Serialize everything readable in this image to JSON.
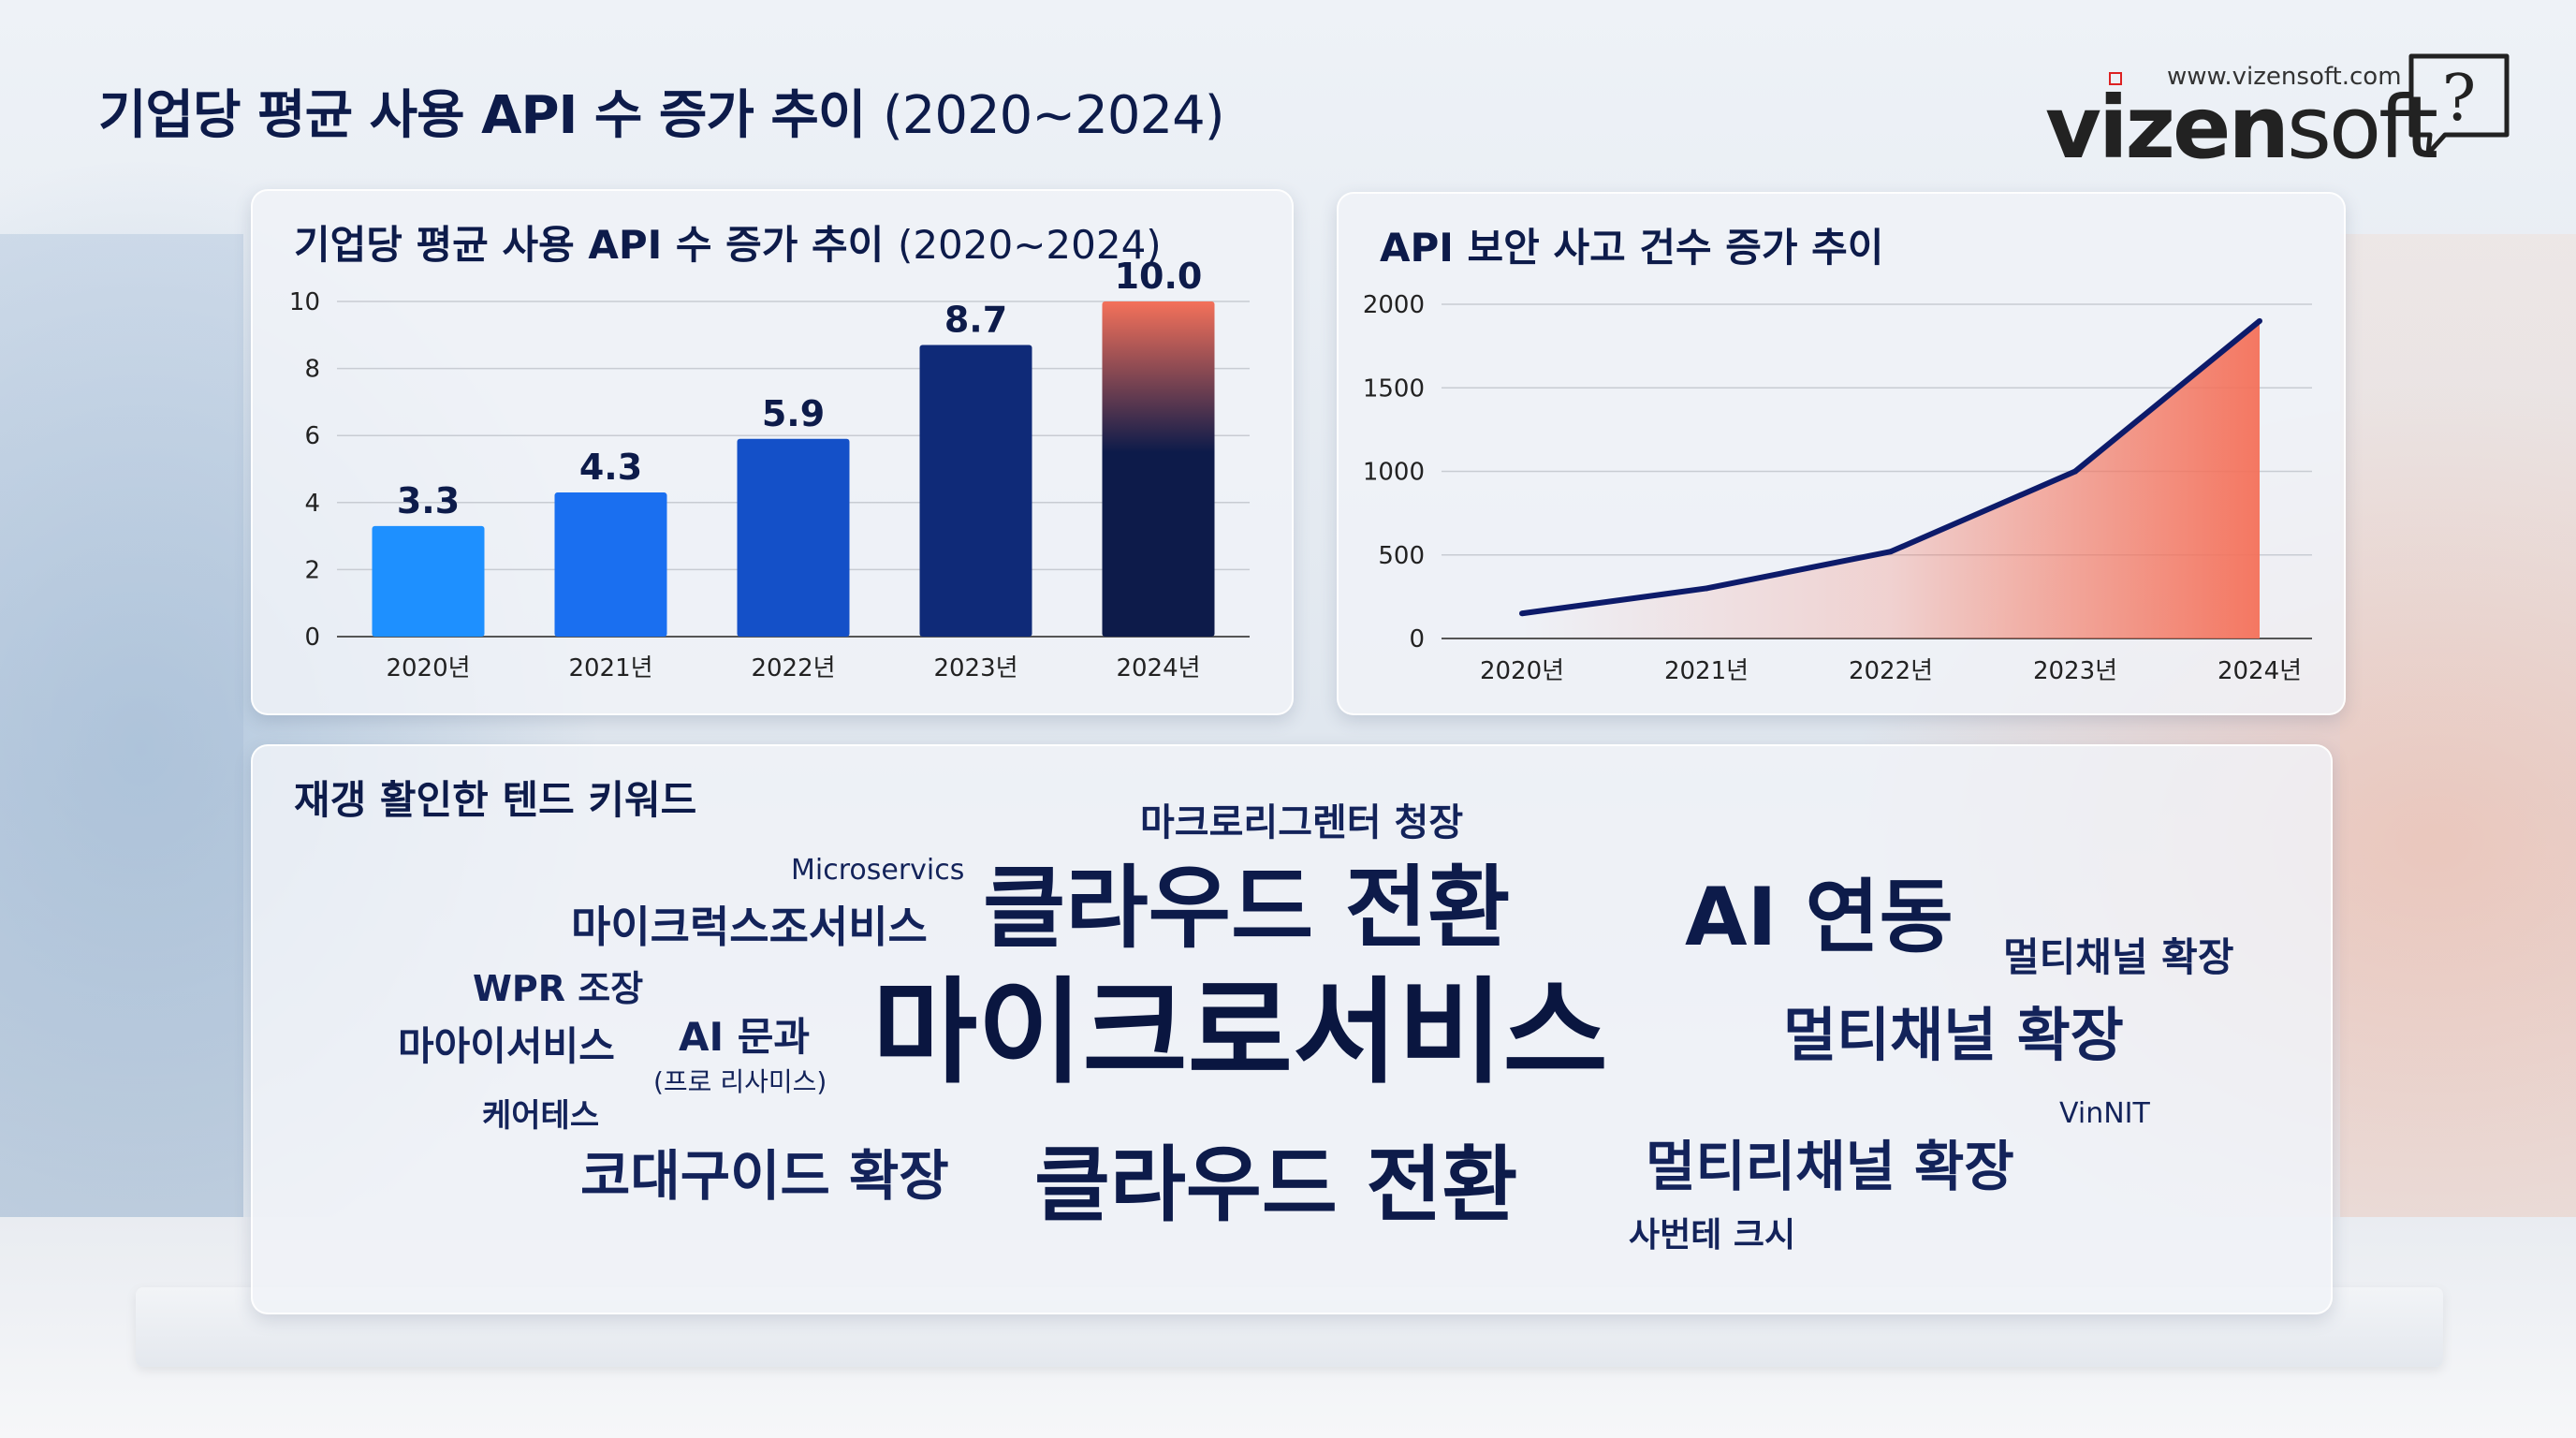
{
  "header": {
    "title": "기업당 평균 사용 API 수 증가 추이",
    "title_years": "(2020~2024)"
  },
  "logo": {
    "url": "www.vizensoft.com",
    "brand_bold": "vizen",
    "brand_light": "soft",
    "icon": "question-bubble-icon"
  },
  "colors": {
    "navy": "#0d1b4a",
    "bar_light": "#1e90ff",
    "bar_dark": "#0a1a4a",
    "accent_coral": "#f4715a"
  },
  "chart_data": [
    {
      "type": "bar",
      "title": "기업당 평균 사용 API 수 증가 추이",
      "title_years": "(2020~2024)",
      "categories": [
        "2020년",
        "2021년",
        "2022년",
        "2023년",
        "2024년"
      ],
      "values": [
        3.3,
        4.3,
        5.9,
        8.7,
        10.0
      ],
      "value_labels": [
        "3.3",
        "4.3",
        "5.9",
        "8.7",
        "10.0"
      ],
      "yticks": [
        "0",
        "2",
        "4",
        "6",
        "8",
        "10"
      ],
      "ylim": [
        0,
        10
      ],
      "grid": true
    },
    {
      "type": "area",
      "title": "API 보안 사고 건수 증가 추이",
      "categories": [
        "2020년",
        "2021년",
        "2022년",
        "2023년",
        "2024년"
      ],
      "values": [
        150,
        300,
        520,
        1000,
        1900
      ],
      "yticks": [
        "0",
        "500",
        "1000",
        "1500",
        "2000"
      ],
      "ylim": [
        0,
        2000
      ],
      "grid": true
    }
  ],
  "word_cloud": {
    "title": "재갱 활인한 텐드 키워드",
    "words": [
      {
        "text": "마크로리그렌터 청장",
        "size": 40
      },
      {
        "text": "Microservics",
        "size": 30
      },
      {
        "text": "클라우드 전환",
        "size": 96
      },
      {
        "text": "AI 연동",
        "size": 86
      },
      {
        "text": "마이크럭스조서비스",
        "size": 46
      },
      {
        "text": "멀티채널 확장",
        "size": 42
      },
      {
        "text": "WPR 조장",
        "size": 38
      },
      {
        "text": "마이크로서비스",
        "size": 122
      },
      {
        "text": "멀티채널 확장",
        "size": 62
      },
      {
        "text": "마아이서비스",
        "size": 42
      },
      {
        "text": "AI 문과",
        "size": 42
      },
      {
        "text": "(프로 리사미스)",
        "size": 28
      },
      {
        "text": "케어테스",
        "size": 34
      },
      {
        "text": "VinNIT",
        "size": 30
      },
      {
        "text": "코대구이드 확장",
        "size": 58
      },
      {
        "text": "클라우드 전환",
        "size": 88
      },
      {
        "text": "멀티리채널 확장",
        "size": 58
      },
      {
        "text": "사번테 크시",
        "size": 36
      }
    ]
  }
}
